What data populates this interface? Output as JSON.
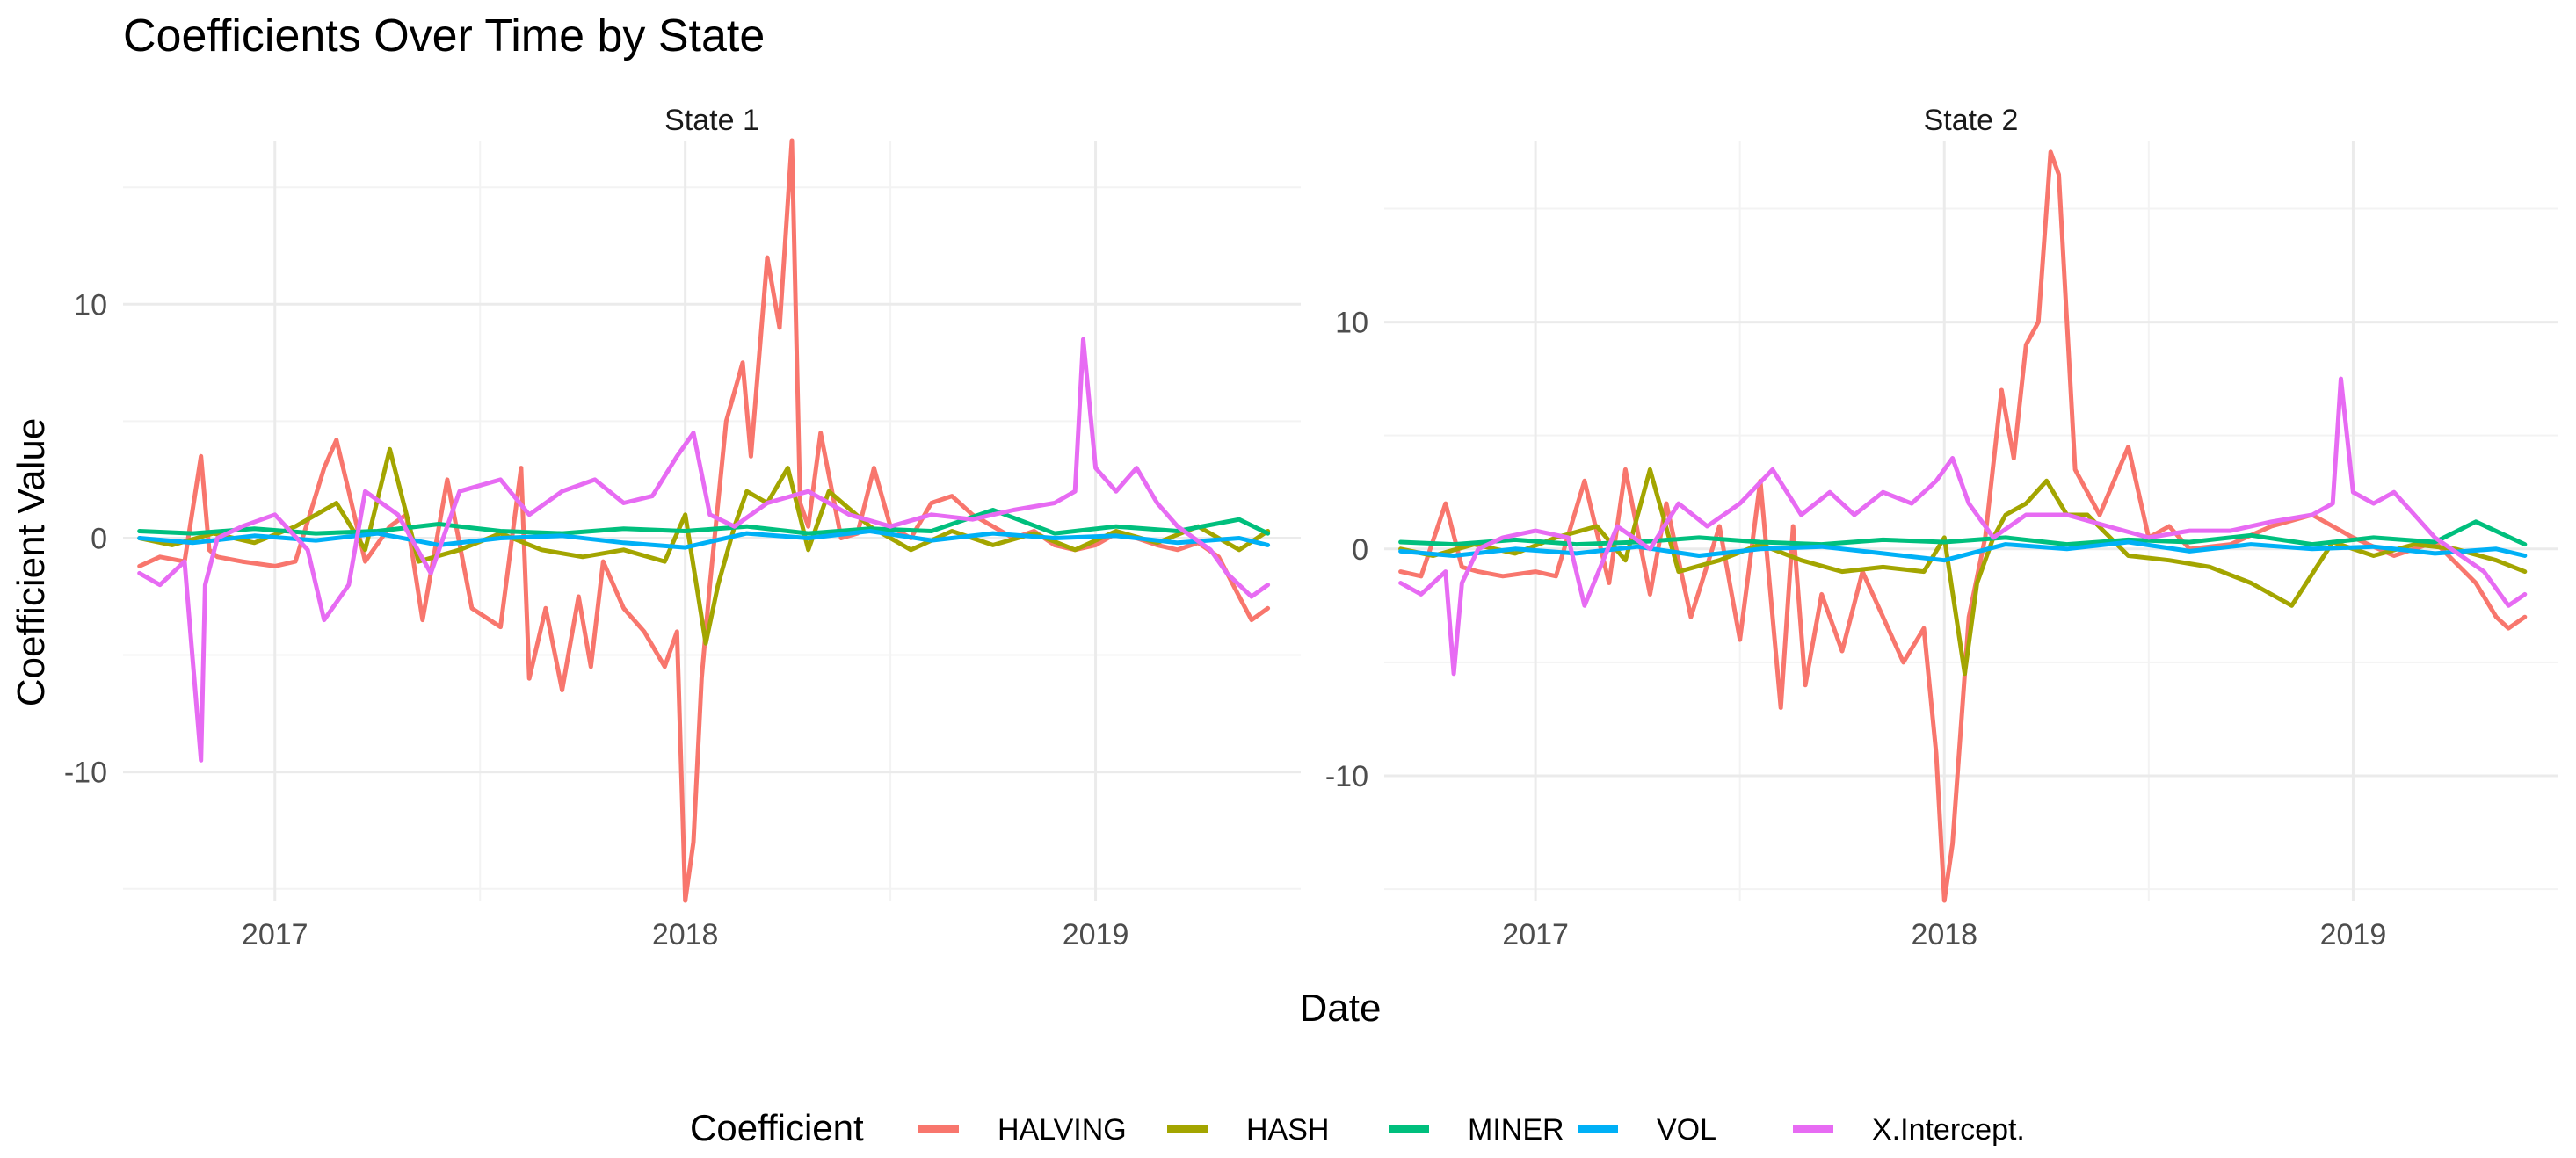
{
  "chart_data": {
    "type": "line",
    "title": "Coefficients Over Time by State",
    "xlabel": "Date",
    "ylabel": "Coefficient Value",
    "legend_title": "Coefficient",
    "legend_position": "bottom",
    "grid": true,
    "x_ticks": [
      2017,
      2018,
      2019
    ],
    "panels": [
      {
        "label": "State 1",
        "xlim": [
          2016.63,
          2019.5
        ],
        "ylim": [
          -15.5,
          17.0
        ],
        "y_ticks": [
          -10,
          0,
          10
        ],
        "series": [
          {
            "name": "HALVING",
            "x": [
              2016.67,
              2016.72,
              2016.78,
              2016.82,
              2016.84,
              2016.86,
              2016.92,
              2017.0,
              2017.05,
              2017.12,
              2017.15,
              2017.18,
              2017.22,
              2017.28,
              2017.32,
              2017.36,
              2017.42,
              2017.48,
              2017.55,
              2017.6,
              2017.62,
              2017.66,
              2017.7,
              2017.74,
              2017.77,
              2017.8,
              2017.85,
              2017.9,
              2017.95,
              2017.98,
              2018.0,
              2018.02,
              2018.04,
              2018.06,
              2018.1,
              2018.14,
              2018.16,
              2018.2,
              2018.23,
              2018.26,
              2018.28,
              2018.3,
              2018.33,
              2018.38,
              2018.42,
              2018.46,
              2018.5,
              2018.55,
              2018.6,
              2018.65,
              2018.7,
              2018.75,
              2018.8,
              2018.85,
              2018.9,
              2018.95,
              2019.0,
              2019.05,
              2019.1,
              2019.15,
              2019.2,
              2019.25,
              2019.3,
              2019.35,
              2019.38,
              2019.42
            ],
            "values": [
              -1.2,
              -0.8,
              -1.0,
              3.5,
              -0.5,
              -0.8,
              -1.0,
              -1.2,
              -1.0,
              3.0,
              4.2,
              2.0,
              -1.0,
              0.5,
              1.0,
              -3.5,
              2.5,
              -3.0,
              -3.8,
              3.0,
              -6.0,
              -3.0,
              -6.5,
              -2.5,
              -5.5,
              -1.0,
              -3.0,
              -4.0,
              -5.5,
              -4.0,
              -15.5,
              -13.0,
              -6.0,
              -2.0,
              5.0,
              7.5,
              3.5,
              12.0,
              9.0,
              17.0,
              1.5,
              0.5,
              4.5,
              0.0,
              0.2,
              3.0,
              0.5,
              0.0,
              1.5,
              1.8,
              1.0,
              0.5,
              0.0,
              0.3,
              -0.3,
              -0.5,
              -0.3,
              0.2,
              0.0,
              -0.3,
              -0.5,
              -0.2,
              -0.8,
              -2.5,
              -3.5,
              -3.0
            ]
          },
          {
            "name": "HASH",
            "x": [
              2016.67,
              2016.75,
              2016.85,
              2016.95,
              2017.05,
              2017.15,
              2017.22,
              2017.28,
              2017.35,
              2017.45,
              2017.55,
              2017.65,
              2017.75,
              2017.85,
              2017.95,
              2018.0,
              2018.05,
              2018.08,
              2018.12,
              2018.15,
              2018.2,
              2018.25,
              2018.3,
              2018.35,
              2018.45,
              2018.55,
              2018.65,
              2018.75,
              2018.85,
              2018.95,
              2019.05,
              2019.15,
              2019.25,
              2019.35,
              2019.42
            ],
            "values": [
              0.0,
              -0.3,
              0.2,
              -0.2,
              0.5,
              1.5,
              -0.5,
              3.8,
              -1.0,
              -0.5,
              0.2,
              -0.5,
              -0.8,
              -0.5,
              -1.0,
              1.0,
              -4.5,
              -2.0,
              0.5,
              2.0,
              1.5,
              3.0,
              -0.5,
              2.0,
              0.5,
              -0.5,
              0.3,
              -0.3,
              0.2,
              -0.5,
              0.3,
              -0.2,
              0.5,
              -0.5,
              0.3
            ]
          },
          {
            "name": "MINER",
            "x": [
              2016.67,
              2016.8,
              2016.95,
              2017.1,
              2017.25,
              2017.4,
              2017.55,
              2017.7,
              2017.85,
              2018.0,
              2018.15,
              2018.3,
              2018.45,
              2018.6,
              2018.75,
              2018.9,
              2019.05,
              2019.2,
              2019.35,
              2019.42
            ],
            "values": [
              0.3,
              0.2,
              0.4,
              0.2,
              0.3,
              0.6,
              0.3,
              0.2,
              0.4,
              0.3,
              0.5,
              0.2,
              0.4,
              0.3,
              1.2,
              0.2,
              0.5,
              0.3,
              0.8,
              0.2
            ]
          },
          {
            "name": "VOL",
            "x": [
              2016.67,
              2016.8,
              2016.95,
              2017.1,
              2017.25,
              2017.4,
              2017.55,
              2017.7,
              2017.85,
              2018.0,
              2018.15,
              2018.3,
              2018.45,
              2018.6,
              2018.75,
              2018.9,
              2019.05,
              2019.2,
              2019.35,
              2019.42
            ],
            "values": [
              0.0,
              -0.2,
              0.1,
              -0.1,
              0.2,
              -0.3,
              0.0,
              0.1,
              -0.2,
              -0.4,
              0.2,
              0.0,
              0.3,
              -0.1,
              0.2,
              0.0,
              0.1,
              -0.2,
              0.0,
              -0.3
            ]
          },
          {
            "name": "X.Intercept.",
            "x": [
              2016.67,
              2016.72,
              2016.78,
              2016.82,
              2016.83,
              2016.86,
              2016.92,
              2017.0,
              2017.08,
              2017.12,
              2017.18,
              2017.22,
              2017.3,
              2017.38,
              2017.45,
              2017.55,
              2017.62,
              2017.7,
              2017.78,
              2017.85,
              2017.92,
              2017.98,
              2018.02,
              2018.06,
              2018.12,
              2018.2,
              2018.3,
              2018.4,
              2018.5,
              2018.6,
              2018.7,
              2018.8,
              2018.9,
              2018.95,
              2018.97,
              2019.0,
              2019.05,
              2019.1,
              2019.15,
              2019.2,
              2019.28,
              2019.32,
              2019.38,
              2019.42
            ],
            "values": [
              -1.5,
              -2.0,
              -1.0,
              -9.5,
              -2.0,
              0.0,
              0.5,
              1.0,
              -0.5,
              -3.5,
              -2.0,
              2.0,
              1.0,
              -1.5,
              2.0,
              2.5,
              1.0,
              2.0,
              2.5,
              1.5,
              1.8,
              3.5,
              4.5,
              1.0,
              0.5,
              1.5,
              2.0,
              1.0,
              0.5,
              1.0,
              0.8,
              1.2,
              1.5,
              2.0,
              8.5,
              3.0,
              2.0,
              3.0,
              1.5,
              0.5,
              -0.5,
              -1.5,
              -2.5,
              -2.0
            ]
          }
        ]
      },
      {
        "label": "State 2",
        "xlim": [
          2016.63,
          2019.5
        ],
        "ylim": [
          -15.5,
          18.0
        ],
        "y_ticks": [
          -10,
          0,
          10
        ],
        "series": [
          {
            "name": "HALVING",
            "x": [
              2016.67,
              2016.72,
              2016.78,
              2016.82,
              2016.86,
              2016.92,
              2017.0,
              2017.05,
              2017.12,
              2017.18,
              2017.22,
              2017.28,
              2017.32,
              2017.38,
              2017.45,
              2017.5,
              2017.55,
              2017.6,
              2017.63,
              2017.66,
              2017.7,
              2017.75,
              2017.8,
              2017.85,
              2017.9,
              2017.95,
              2017.98,
              2018.0,
              2018.02,
              2018.04,
              2018.06,
              2018.1,
              2018.14,
              2018.17,
              2018.2,
              2018.23,
              2018.26,
              2018.28,
              2018.32,
              2018.38,
              2018.45,
              2018.5,
              2018.55,
              2018.6,
              2018.7,
              2018.8,
              2018.9,
              2019.0,
              2019.1,
              2019.2,
              2019.3,
              2019.35,
              2019.38,
              2019.42
            ],
            "values": [
              -1.0,
              -1.2,
              2.0,
              -0.8,
              -1.0,
              -1.2,
              -1.0,
              -1.2,
              3.0,
              -1.5,
              3.5,
              -2.0,
              2.0,
              -3.0,
              1.0,
              -4.0,
              3.0,
              -7.0,
              1.0,
              -6.0,
              -2.0,
              -4.5,
              -1.0,
              -3.0,
              -5.0,
              -3.5,
              -9.0,
              -15.5,
              -13.0,
              -8.0,
              -3.0,
              0.5,
              7.0,
              4.0,
              9.0,
              10.0,
              17.5,
              16.5,
              3.5,
              1.5,
              4.5,
              0.5,
              1.0,
              0.0,
              0.2,
              1.0,
              1.5,
              0.5,
              -0.3,
              0.3,
              -1.5,
              -3.0,
              -3.5,
              -3.0
            ]
          },
          {
            "name": "HASH",
            "x": [
              2016.67,
              2016.75,
              2016.85,
              2016.95,
              2017.05,
              2017.15,
              2017.22,
              2017.28,
              2017.35,
              2017.45,
              2017.55,
              2017.65,
              2017.75,
              2017.85,
              2017.95,
              2018.0,
              2018.05,
              2018.08,
              2018.12,
              2018.15,
              2018.2,
              2018.25,
              2018.3,
              2018.35,
              2018.45,
              2018.55,
              2018.65,
              2018.75,
              2018.85,
              2018.95,
              2019.05,
              2019.15,
              2019.25,
              2019.35,
              2019.42
            ],
            "values": [
              0.0,
              -0.3,
              0.2,
              -0.2,
              0.5,
              1.0,
              -0.5,
              3.5,
              -1.0,
              -0.5,
              0.2,
              -0.5,
              -1.0,
              -0.8,
              -1.0,
              0.5,
              -5.5,
              -1.5,
              0.5,
              1.5,
              2.0,
              3.0,
              1.5,
              1.5,
              -0.3,
              -0.5,
              -0.8,
              -1.5,
              -2.5,
              0.3,
              -0.3,
              0.2,
              0.0,
              -0.5,
              -1.0
            ]
          },
          {
            "name": "MINER",
            "x": [
              2016.67,
              2016.8,
              2016.95,
              2017.1,
              2017.25,
              2017.4,
              2017.55,
              2017.7,
              2017.85,
              2018.0,
              2018.15,
              2018.3,
              2018.45,
              2018.6,
              2018.75,
              2018.9,
              2019.05,
              2019.2,
              2019.3,
              2019.42
            ],
            "values": [
              0.3,
              0.2,
              0.4,
              0.2,
              0.3,
              0.5,
              0.3,
              0.2,
              0.4,
              0.3,
              0.5,
              0.2,
              0.4,
              0.3,
              0.6,
              0.2,
              0.5,
              0.3,
              1.2,
              0.2
            ]
          },
          {
            "name": "VOL",
            "x": [
              2016.67,
              2016.8,
              2016.95,
              2017.1,
              2017.25,
              2017.4,
              2017.55,
              2017.7,
              2017.85,
              2018.0,
              2018.15,
              2018.3,
              2018.45,
              2018.6,
              2018.75,
              2018.9,
              2019.05,
              2019.2,
              2019.35,
              2019.42
            ],
            "values": [
              -0.1,
              -0.3,
              0.0,
              -0.2,
              0.1,
              -0.3,
              0.0,
              0.1,
              -0.2,
              -0.5,
              0.2,
              0.0,
              0.3,
              -0.1,
              0.2,
              0.0,
              0.1,
              -0.2,
              0.0,
              -0.3
            ]
          },
          {
            "name": "X.Intercept.",
            "x": [
              2016.67,
              2016.72,
              2016.78,
              2016.8,
              2016.82,
              2016.86,
              2016.92,
              2017.0,
              2017.08,
              2017.12,
              2017.2,
              2017.28,
              2017.35,
              2017.42,
              2017.5,
              2017.58,
              2017.65,
              2017.72,
              2017.78,
              2017.85,
              2017.92,
              2017.98,
              2018.02,
              2018.06,
              2018.12,
              2018.2,
              2018.3,
              2018.4,
              2018.5,
              2018.6,
              2018.7,
              2018.8,
              2018.9,
              2018.95,
              2018.97,
              2019.0,
              2019.05,
              2019.1,
              2019.15,
              2019.2,
              2019.28,
              2019.32,
              2019.38,
              2019.42
            ],
            "values": [
              -1.5,
              -2.0,
              -1.0,
              -5.5,
              -1.5,
              0.0,
              0.5,
              0.8,
              0.5,
              -2.5,
              1.0,
              0.0,
              2.0,
              1.0,
              2.0,
              3.5,
              1.5,
              2.5,
              1.5,
              2.5,
              2.0,
              3.0,
              4.0,
              2.0,
              0.5,
              1.5,
              1.5,
              1.0,
              0.5,
              0.8,
              0.8,
              1.2,
              1.5,
              2.0,
              7.5,
              2.5,
              2.0,
              2.5,
              1.5,
              0.5,
              -0.5,
              -1.0,
              -2.5,
              -2.0
            ]
          }
        ]
      }
    ]
  },
  "colors": {
    "HALVING": "#F8766D",
    "HASH": "#A3A500",
    "MINER": "#00BF7D",
    "VOL": "#00B0F6",
    "X.Intercept.": "#E76BF3"
  }
}
